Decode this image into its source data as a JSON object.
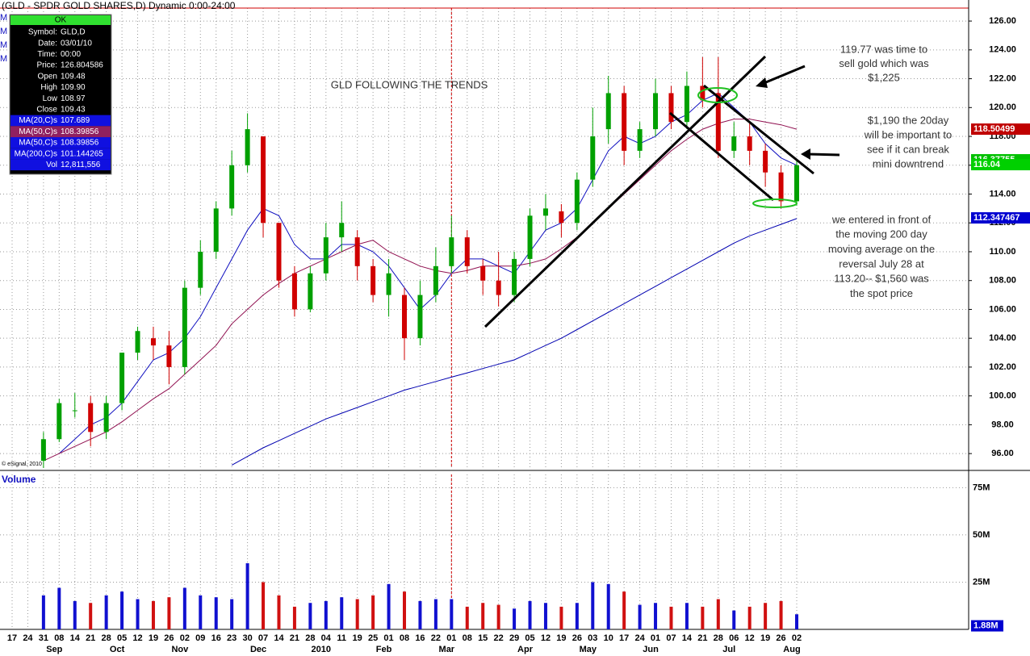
{
  "chart_data": [
    {
      "type": "candlestick",
      "title": "(GLD - SPDR GOLD SHARES,D) Dynamic 0:00-24:00",
      "side_markers": [
        "M",
        "M",
        "M",
        "M"
      ],
      "credit": "© eSignal, 2010",
      "info_box": {
        "button": "OK",
        "rows": [
          [
            "Symbol:",
            "GLD,D"
          ],
          [
            "Date:",
            "03/01/10"
          ],
          [
            "Time:",
            "00:00"
          ],
          [
            "Price:",
            "126.804586"
          ],
          [
            "Open",
            "109.48"
          ],
          [
            "High",
            "109.90"
          ],
          [
            "Low",
            "108.97"
          ],
          [
            "Close",
            "109.43"
          ],
          [
            "MA(20,C)s",
            "107.689"
          ],
          [
            "MA(50,C)s",
            "108.39856"
          ],
          [
            "MA(50,C)s",
            "108.39856"
          ],
          [
            "MA(200,C)s",
            "101.144265"
          ],
          [
            "Vol",
            "12,811,556"
          ]
        ]
      },
      "up_color": "#00a000",
      "down_color": "#d00000",
      "open": [
        null,
        null,
        95.5,
        97,
        99,
        99.5,
        97.5,
        99.5,
        103,
        104,
        103.5,
        102,
        107.5,
        110,
        113,
        116,
        118,
        112,
        108.5,
        106,
        108.5,
        111,
        111,
        109,
        107,
        107,
        104,
        107,
        109,
        111,
        109,
        108,
        107,
        109.5,
        112.5,
        112.8,
        112,
        115,
        118.5,
        121,
        117,
        118.5,
        121,
        119,
        121.5,
        121,
        117,
        118,
        117,
        115.5,
        113.5
      ],
      "high": [
        null,
        null,
        97.5,
        99.8,
        100.2,
        100,
        100,
        103,
        104.8,
        104.8,
        104.5,
        108,
        110.8,
        113.5,
        117,
        119.6,
        118,
        112,
        109,
        109,
        112,
        113.5,
        111.5,
        109.5,
        109.5,
        107.5,
        108,
        110.3,
        112.5,
        111.5,
        109.5,
        110,
        110,
        113,
        114,
        113.3,
        115.5,
        120,
        122.2,
        121.5,
        119,
        122,
        121.5,
        122.5,
        123.5,
        123.5,
        119,
        119,
        117.5,
        116,
        116.3
      ],
      "low": [
        null,
        null,
        95,
        96.8,
        98.5,
        96.5,
        97,
        99,
        102.5,
        102.5,
        100.8,
        101.5,
        107,
        109.5,
        112.5,
        115.5,
        111,
        107.5,
        105.5,
        105.8,
        108,
        110,
        108,
        106.5,
        105.5,
        102.5,
        103.5,
        106.5,
        108.5,
        108.5,
        107,
        106.2,
        106.5,
        109,
        111.5,
        111,
        111.5,
        114.5,
        117.5,
        116,
        116.5,
        118,
        118.5,
        118.5,
        120,
        116.5,
        116.5,
        116,
        114.5,
        113,
        113.2
      ],
      "close": [
        null,
        null,
        97,
        99.5,
        99,
        97.5,
        99.5,
        103,
        104.5,
        103.5,
        102,
        107.5,
        110,
        113,
        116,
        118.5,
        112,
        108,
        106,
        108.5,
        111,
        112,
        109,
        107,
        108.5,
        104,
        107,
        109,
        111,
        109,
        108,
        107,
        109.5,
        112.5,
        113,
        112,
        115,
        118,
        121,
        117,
        118.5,
        121,
        119,
        121.5,
        120.5,
        117,
        118,
        117,
        115.5,
        113.5,
        116
      ],
      "moving_averages": [
        {
          "color": "#1010c0",
          "values": [
            null,
            null,
            null,
            96,
            97,
            98,
            98.5,
            99.5,
            101,
            102.5,
            103,
            104,
            105.5,
            107.5,
            109.5,
            111.5,
            113,
            112.5,
            110.5,
            109.5,
            109.5,
            110.5,
            110.5,
            110,
            109,
            107.5,
            106,
            107,
            108.5,
            109.5,
            109.5,
            109,
            108.5,
            110,
            111.5,
            112,
            113,
            115,
            117,
            118,
            117.5,
            118,
            119,
            119.5,
            120.5,
            121,
            120,
            119,
            117.5,
            116.5,
            116
          ]
        },
        {
          "color": "#901050",
          "values": [
            null,
            null,
            95.5,
            96,
            96.5,
            97,
            97.5,
            98.2,
            99,
            99.8,
            100.5,
            101.5,
            102.5,
            103.5,
            105,
            106,
            107,
            107.8,
            108.5,
            109,
            109.5,
            110,
            110.5,
            110.8,
            110,
            109.5,
            109,
            108.7,
            108.5,
            108.7,
            109,
            109,
            109,
            109.2,
            109.5,
            110.2,
            111,
            112,
            113,
            114,
            115,
            116,
            117,
            117.8,
            118.5,
            118.9,
            119.2,
            119.2,
            119,
            118.8,
            118.5
          ]
        },
        {
          "color": "#0000b0",
          "values": [
            null,
            null,
            null,
            null,
            null,
            null,
            null,
            null,
            null,
            null,
            null,
            null,
            null,
            null,
            95.2,
            95.8,
            96.4,
            96.9,
            97.4,
            97.9,
            98.4,
            98.8,
            99.2,
            99.6,
            100.0,
            100.4,
            100.7,
            101.0,
            101.3,
            101.6,
            101.9,
            102.2,
            102.5,
            103.0,
            103.5,
            104.0,
            104.6,
            105.2,
            105.8,
            106.4,
            107.0,
            107.6,
            108.2,
            108.8,
            109.4,
            110.0,
            110.6,
            111.1,
            111.5,
            111.9,
            112.3
          ]
        }
      ],
      "ylim": [
        95,
        126.9
      ],
      "yticks": [
        {
          "value": 96,
          "label": "96.00"
        },
        {
          "value": 98,
          "label": "98.00"
        },
        {
          "value": 100,
          "label": "100.00"
        },
        {
          "value": 102,
          "label": "102.00"
        },
        {
          "value": 104,
          "label": "104.00"
        },
        {
          "value": 106,
          "label": "106.00"
        },
        {
          "value": 108,
          "label": "108.00"
        },
        {
          "value": 110,
          "label": "110.00"
        },
        {
          "value": 112,
          "label": "112.00"
        },
        {
          "value": 114,
          "label": "114.00"
        },
        {
          "value": 116,
          "label": "116.00"
        },
        {
          "value": 118,
          "label": "118.00"
        },
        {
          "value": 120,
          "label": "120.00"
        },
        {
          "value": 122,
          "label": "122.00"
        },
        {
          "value": 124,
          "label": "124.00"
        },
        {
          "value": 126,
          "label": "126.00"
        }
      ],
      "price_badges": [
        {
          "value": 118.50499,
          "color": "#c00000"
        },
        {
          "value": 116.37755,
          "color": "#00c000"
        },
        {
          "value": 116.04,
          "color": "#00d000"
        },
        {
          "value": 112.347467,
          "color": "#0000d0"
        }
      ],
      "annotations": [
        {
          "lines": [
            "GLD FOLLOWING THE TRENDS"
          ]
        },
        {
          "lines": [
            "119.77 was time to",
            "sell gold which was",
            "$1,225"
          ]
        },
        {
          "lines": [
            "$1,190 the 20day",
            "will be important to",
            "see if it can break",
            "mini downtrend"
          ]
        },
        {
          "lines": [
            "we entered in front of",
            "the moving 200 day",
            "moving average on the",
            "reversal July 28 at",
            "113.20-- $1,560 was",
            "the spot price"
          ]
        }
      ],
      "grid": true
    },
    {
      "type": "bar",
      "title": "Volume",
      "categories": [
        "17",
        "24",
        "31",
        "08",
        "14",
        "21",
        "28",
        "05",
        "12",
        "19",
        "26",
        "02",
        "09",
        "16",
        "23",
        "30",
        "07",
        "14",
        "21",
        "28",
        "04",
        "11",
        "19",
        "25",
        "01",
        "08",
        "16",
        "22",
        "01",
        "08",
        "15",
        "22",
        "29",
        "05",
        "12",
        "19",
        "26",
        "03",
        "10",
        "17",
        "24",
        "01",
        "07",
        "14",
        "21",
        "28",
        "06",
        "12",
        "19",
        "26",
        "02"
      ],
      "month_labels": [
        "Sep",
        "Oct",
        "Nov",
        "Dec",
        "2010",
        "Feb",
        "Mar",
        "Apr",
        "May",
        "Jun",
        "Jul",
        "Aug"
      ],
      "values": [
        null,
        null,
        18,
        22,
        15,
        14,
        18,
        20,
        16,
        15,
        17,
        22,
        18,
        17,
        16,
        35,
        25,
        18,
        12,
        14,
        15,
        17,
        16,
        18,
        24,
        20,
        15,
        16,
        16,
        12,
        14,
        13,
        11,
        15,
        14,
        12,
        14,
        25,
        24,
        20,
        13,
        14,
        12,
        14,
        12,
        16,
        10,
        12,
        14,
        15,
        8
      ],
      "ylim": [
        0,
        82
      ],
      "yticks": [
        {
          "value": 25,
          "label": "25M"
        },
        {
          "value": 50,
          "label": "50M"
        },
        {
          "value": 75,
          "label": "75M"
        }
      ],
      "badge": {
        "value": 1.88,
        "label": "1.88M",
        "color": "#0000d0"
      },
      "grid": true
    }
  ]
}
